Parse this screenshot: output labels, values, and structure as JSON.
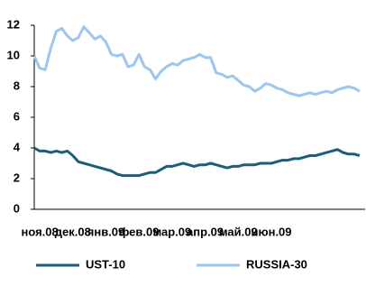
{
  "chart_data": {
    "type": "line",
    "categories": [
      null,
      "ноя.08",
      null,
      null,
      null,
      null,
      null,
      "дек.08",
      null,
      null,
      null,
      null,
      null,
      "янв.09",
      null,
      null,
      null,
      null,
      null,
      "фев.09",
      null,
      null,
      null,
      null,
      null,
      "мар.09",
      null,
      null,
      null,
      null,
      null,
      "апр.09",
      null,
      null,
      null,
      null,
      null,
      "май.09",
      null,
      null,
      null,
      null,
      null,
      "июн.09",
      null,
      null,
      null,
      null,
      null,
      null,
      null,
      null,
      null,
      null,
      null,
      null,
      null,
      null,
      null,
      null
    ],
    "series": [
      {
        "name": "UST-10",
        "color": "#1b5e78",
        "values": [
          4,
          3.8,
          3.8,
          3.7,
          3.8,
          3.7,
          3.8,
          3.5,
          3.1,
          3,
          2.9,
          2.8,
          2.7,
          2.6,
          2.5,
          2.3,
          2.2,
          2.2,
          2.2,
          2.2,
          2.3,
          2.4,
          2.4,
          2.6,
          2.8,
          2.8,
          2.9,
          3,
          2.9,
          2.8,
          2.9,
          2.9,
          3,
          2.9,
          2.8,
          2.7,
          2.8,
          2.8,
          2.9,
          2.9,
          2.9,
          3,
          3,
          3,
          3.1,
          3.2,
          3.2,
          3.3,
          3.3,
          3.4,
          3.5,
          3.5,
          3.6,
          3.7,
          3.8,
          3.9,
          3.7,
          3.6,
          3.6,
          3.5
        ]
      },
      {
        "name": "RUSSIA-30",
        "color": "#9dc6ee",
        "values": [
          10,
          9.2,
          9.1,
          10.5,
          11.6,
          11.8,
          11.3,
          11,
          11.2,
          11.9,
          11.5,
          11.1,
          11.3,
          10.9,
          10.1,
          10,
          10.1,
          9.3,
          9.4,
          10.1,
          9.3,
          9.1,
          8.5,
          9,
          9.3,
          9.5,
          9.4,
          9.7,
          9.8,
          9.9,
          10.1,
          9.9,
          9.9,
          8.9,
          8.8,
          8.6,
          8.7,
          8.4,
          8.1,
          8,
          7.7,
          7.9,
          8.2,
          8.1,
          7.9,
          7.8,
          7.6,
          7.5,
          7.4,
          7.5,
          7.6,
          7.5,
          7.6,
          7.7,
          7.6,
          7.8,
          7.9,
          8,
          7.9,
          7.7
        ]
      }
    ],
    "ylim": [
      0,
      12
    ],
    "yticks": [
      0,
      2,
      4,
      6,
      8,
      10,
      12
    ],
    "grid": false,
    "legend": "bottom"
  }
}
